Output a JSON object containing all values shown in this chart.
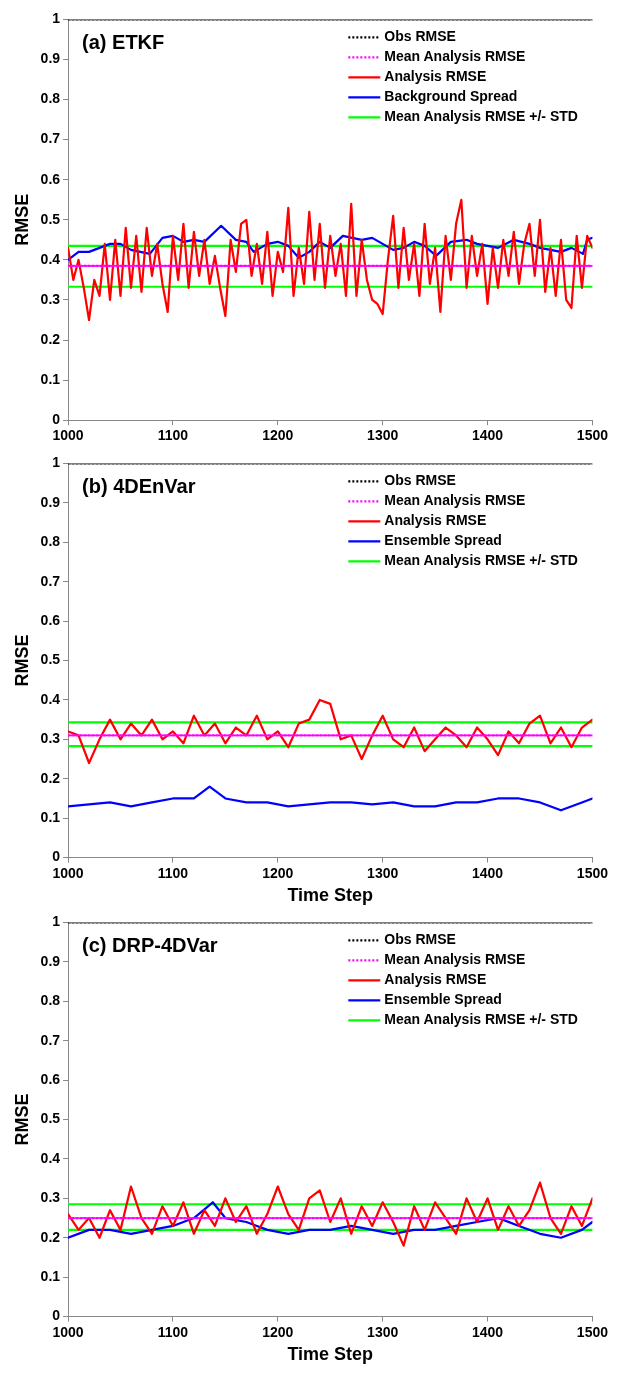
{
  "chart_data": [
    {
      "type": "line",
      "title": "(a) ETKF",
      "ylabel": "RMSE",
      "xlim": [
        1000,
        1500
      ],
      "ylim": [
        0,
        1
      ],
      "xticks": [
        1000,
        1100,
        1200,
        1300,
        1400,
        1500
      ],
      "yticks": [
        0,
        0.1,
        0.2,
        0.3,
        0.4,
        0.5,
        0.6,
        0.7,
        0.8,
        0.9,
        1
      ],
      "legend": "top right",
      "marker": "none",
      "series": [
        {
          "name": "Obs RMSE",
          "color": "#000000",
          "line_style": "dotted",
          "x": [
            1000,
            1500
          ],
          "values": [
            1,
            1
          ]
        },
        {
          "name": "Mean Analysis RMSE",
          "color": "#ff00ff",
          "line_style": "dotted",
          "x": [
            1000,
            1500
          ],
          "values": [
            0.385,
            0.385
          ]
        },
        {
          "name": "Analysis RMSE",
          "color": "#ff0000",
          "x": [
            1000,
            1005,
            1010,
            1015,
            1020,
            1025,
            1030,
            1035,
            1040,
            1045,
            1050,
            1055,
            1060,
            1065,
            1070,
            1075,
            1080,
            1085,
            1090,
            1095,
            1100,
            1105,
            1110,
            1115,
            1120,
            1125,
            1130,
            1135,
            1140,
            1145,
            1150,
            1155,
            1160,
            1165,
            1170,
            1175,
            1180,
            1185,
            1190,
            1195,
            1200,
            1205,
            1210,
            1215,
            1220,
            1225,
            1230,
            1235,
            1240,
            1245,
            1250,
            1255,
            1260,
            1265,
            1270,
            1275,
            1280,
            1285,
            1290,
            1295,
            1300,
            1305,
            1310,
            1315,
            1320,
            1325,
            1330,
            1335,
            1340,
            1345,
            1350,
            1355,
            1360,
            1365,
            1370,
            1375,
            1380,
            1385,
            1390,
            1395,
            1400,
            1405,
            1410,
            1415,
            1420,
            1425,
            1430,
            1435,
            1440,
            1445,
            1450,
            1455,
            1460,
            1465,
            1470,
            1475,
            1480,
            1485,
            1490,
            1495,
            1500
          ],
          "values": [
            0.43,
            0.35,
            0.4,
            0.33,
            0.25,
            0.35,
            0.31,
            0.44,
            0.3,
            0.45,
            0.31,
            0.48,
            0.33,
            0.46,
            0.32,
            0.48,
            0.36,
            0.44,
            0.34,
            0.27,
            0.46,
            0.35,
            0.49,
            0.33,
            0.47,
            0.36,
            0.45,
            0.34,
            0.41,
            0.33,
            0.26,
            0.45,
            0.37,
            0.49,
            0.5,
            0.36,
            0.44,
            0.34,
            0.47,
            0.31,
            0.42,
            0.37,
            0.53,
            0.31,
            0.43,
            0.34,
            0.52,
            0.35,
            0.49,
            0.33,
            0.46,
            0.36,
            0.44,
            0.31,
            0.54,
            0.31,
            0.45,
            0.35,
            0.3,
            0.29,
            0.265,
            0.4,
            0.51,
            0.33,
            0.48,
            0.35,
            0.44,
            0.31,
            0.49,
            0.34,
            0.43,
            0.27,
            0.46,
            0.35,
            0.49,
            0.55,
            0.33,
            0.46,
            0.36,
            0.44,
            0.29,
            0.43,
            0.33,
            0.45,
            0.36,
            0.47,
            0.34,
            0.44,
            0.49,
            0.36,
            0.5,
            0.32,
            0.43,
            0.31,
            0.45,
            0.3,
            0.28,
            0.46,
            0.33,
            0.46,
            0.43
          ]
        },
        {
          "name": "Background Spread",
          "color": "#0000ff",
          "x": [
            1000,
            1010,
            1020,
            1030,
            1040,
            1050,
            1060,
            1078,
            1090,
            1100,
            1110,
            1120,
            1130,
            1146,
            1160,
            1170,
            1177,
            1190,
            1200,
            1210,
            1220,
            1230,
            1240,
            1250,
            1262,
            1280,
            1290,
            1300,
            1310,
            1320,
            1330,
            1340,
            1351,
            1365,
            1380,
            1390,
            1400,
            1410,
            1425,
            1440,
            1450,
            1460,
            1470,
            1480,
            1491,
            1495,
            1500
          ],
          "values": [
            0.4,
            0.42,
            0.42,
            0.43,
            0.44,
            0.44,
            0.425,
            0.415,
            0.455,
            0.46,
            0.445,
            0.45,
            0.445,
            0.485,
            0.45,
            0.445,
            0.42,
            0.44,
            0.445,
            0.435,
            0.405,
            0.42,
            0.445,
            0.43,
            0.46,
            0.45,
            0.455,
            0.44,
            0.425,
            0.43,
            0.445,
            0.435,
            0.41,
            0.445,
            0.45,
            0.44,
            0.435,
            0.43,
            0.45,
            0.44,
            0.43,
            0.425,
            0.42,
            0.43,
            0.415,
            0.45,
            0.455
          ]
        },
        {
          "name": "Mean Analysis RMSE +/- STD",
          "color": "#00ff00",
          "x": [
            1000,
            1500
          ],
          "values": [
            0.435,
            0.435
          ]
        },
        {
          "color": "#00ff00",
          "x": [
            1000,
            1500
          ],
          "values": [
            0.333,
            0.333
          ]
        }
      ]
    },
    {
      "type": "line",
      "title": "(b) 4DEnVar",
      "xlabel": "Time Step",
      "ylabel": "RMSE",
      "xlim": [
        1000,
        1500
      ],
      "ylim": [
        0,
        1
      ],
      "xticks": [
        1000,
        1100,
        1200,
        1300,
        1400,
        1500
      ],
      "yticks": [
        0,
        0.1,
        0.2,
        0.3,
        0.4,
        0.5,
        0.6,
        0.7,
        0.8,
        0.9,
        1
      ],
      "legend": "top right",
      "marker": "none",
      "series": [
        {
          "name": "Obs RMSE",
          "color": "#000000",
          "line_style": "dotted",
          "x": [
            1000,
            1500
          ],
          "values": [
            1,
            1
          ]
        },
        {
          "name": "Mean Analysis RMSE",
          "color": "#ff00ff",
          "line_style": "dotted",
          "x": [
            1000,
            1500
          ],
          "values": [
            0.31,
            0.31
          ]
        },
        {
          "name": "Analysis RMSE",
          "color": "#ff0000",
          "x": [
            1000,
            1010,
            1020,
            1030,
            1040,
            1050,
            1060,
            1070,
            1080,
            1090,
            1100,
            1110,
            1120,
            1130,
            1140,
            1150,
            1160,
            1170,
            1180,
            1190,
            1200,
            1210,
            1220,
            1230,
            1240,
            1250,
            1260,
            1270,
            1280,
            1290,
            1300,
            1310,
            1320,
            1330,
            1340,
            1350,
            1360,
            1370,
            1380,
            1390,
            1400,
            1410,
            1420,
            1430,
            1440,
            1450,
            1460,
            1470,
            1480,
            1490,
            1500
          ],
          "values": [
            0.32,
            0.31,
            0.24,
            0.3,
            0.35,
            0.3,
            0.34,
            0.31,
            0.35,
            0.3,
            0.32,
            0.29,
            0.36,
            0.31,
            0.34,
            0.29,
            0.33,
            0.31,
            0.36,
            0.3,
            0.32,
            0.28,
            0.34,
            0.35,
            0.4,
            0.39,
            0.3,
            0.31,
            0.25,
            0.31,
            0.36,
            0.3,
            0.28,
            0.33,
            0.27,
            0.3,
            0.33,
            0.31,
            0.28,
            0.33,
            0.3,
            0.26,
            0.32,
            0.29,
            0.34,
            0.36,
            0.29,
            0.33,
            0.28,
            0.33,
            0.35
          ]
        },
        {
          "name": "Ensemble Spread",
          "color": "#0000ff",
          "x": [
            1000,
            1020,
            1040,
            1060,
            1080,
            1100,
            1120,
            1135,
            1150,
            1170,
            1190,
            1210,
            1230,
            1250,
            1270,
            1290,
            1310,
            1330,
            1350,
            1370,
            1390,
            1410,
            1430,
            1450,
            1470,
            1490,
            1500
          ],
          "values": [
            0.13,
            0.135,
            0.14,
            0.13,
            0.14,
            0.15,
            0.15,
            0.18,
            0.15,
            0.14,
            0.14,
            0.13,
            0.135,
            0.14,
            0.14,
            0.135,
            0.14,
            0.13,
            0.13,
            0.14,
            0.14,
            0.15,
            0.15,
            0.14,
            0.12,
            0.14,
            0.15
          ]
        },
        {
          "name": "Mean Analysis RMSE +/- STD",
          "color": "#00ff00",
          "x": [
            1000,
            1500
          ],
          "values": [
            0.343,
            0.343
          ]
        },
        {
          "color": "#00ff00",
          "x": [
            1000,
            1500
          ],
          "values": [
            0.283,
            0.283
          ]
        }
      ]
    },
    {
      "type": "line",
      "title": "(c) DRP-4DVar",
      "xlabel": "Time Step",
      "ylabel": "RMSE",
      "xlim": [
        1000,
        1500
      ],
      "ylim": [
        0,
        1
      ],
      "xticks": [
        1000,
        1100,
        1200,
        1300,
        1400,
        1500
      ],
      "yticks": [
        0,
        0.1,
        0.2,
        0.3,
        0.4,
        0.5,
        0.6,
        0.7,
        0.8,
        0.9,
        1
      ],
      "legend": "top right",
      "marker": "none",
      "series": [
        {
          "name": "Obs RMSE",
          "color": "#000000",
          "line_style": "dotted",
          "x": [
            1000,
            1500
          ],
          "values": [
            1,
            1
          ]
        },
        {
          "name": "Mean Analysis RMSE",
          "color": "#ff00ff",
          "line_style": "dotted",
          "x": [
            1000,
            1500
          ],
          "values": [
            0.25,
            0.25
          ]
        },
        {
          "name": "Analysis RMSE",
          "color": "#ff0000",
          "x": [
            1000,
            1010,
            1020,
            1030,
            1040,
            1050,
            1060,
            1070,
            1080,
            1090,
            1100,
            1110,
            1120,
            1130,
            1140,
            1150,
            1160,
            1170,
            1180,
            1190,
            1200,
            1210,
            1220,
            1230,
            1240,
            1250,
            1260,
            1270,
            1280,
            1290,
            1300,
            1310,
            1320,
            1330,
            1340,
            1350,
            1360,
            1370,
            1380,
            1390,
            1400,
            1410,
            1420,
            1430,
            1440,
            1450,
            1460,
            1470,
            1480,
            1490,
            1500
          ],
          "values": [
            0.26,
            0.22,
            0.25,
            0.2,
            0.27,
            0.22,
            0.33,
            0.25,
            0.21,
            0.28,
            0.23,
            0.29,
            0.21,
            0.27,
            0.23,
            0.3,
            0.24,
            0.28,
            0.21,
            0.26,
            0.33,
            0.26,
            0.22,
            0.3,
            0.32,
            0.24,
            0.3,
            0.21,
            0.28,
            0.23,
            0.29,
            0.24,
            0.18,
            0.28,
            0.22,
            0.29,
            0.25,
            0.21,
            0.3,
            0.24,
            0.3,
            0.22,
            0.28,
            0.23,
            0.27,
            0.34,
            0.25,
            0.21,
            0.28,
            0.23,
            0.3
          ]
        },
        {
          "name": "Ensemble Spread",
          "color": "#0000ff",
          "x": [
            1000,
            1020,
            1040,
            1060,
            1080,
            1100,
            1120,
            1138,
            1150,
            1170,
            1190,
            1210,
            1230,
            1250,
            1270,
            1290,
            1310,
            1330,
            1350,
            1370,
            1390,
            1410,
            1430,
            1450,
            1470,
            1490,
            1500
          ],
          "values": [
            0.2,
            0.22,
            0.22,
            0.21,
            0.22,
            0.23,
            0.25,
            0.29,
            0.25,
            0.24,
            0.22,
            0.21,
            0.22,
            0.22,
            0.23,
            0.22,
            0.21,
            0.22,
            0.22,
            0.23,
            0.24,
            0.25,
            0.23,
            0.21,
            0.2,
            0.22,
            0.24
          ]
        },
        {
          "name": "Mean Analysis RMSE +/- STD",
          "color": "#00ff00",
          "x": [
            1000,
            1500
          ],
          "values": [
            0.285,
            0.285
          ]
        },
        {
          "color": "#00ff00",
          "x": [
            1000,
            1500
          ],
          "values": [
            0.22,
            0.22
          ]
        }
      ]
    }
  ]
}
